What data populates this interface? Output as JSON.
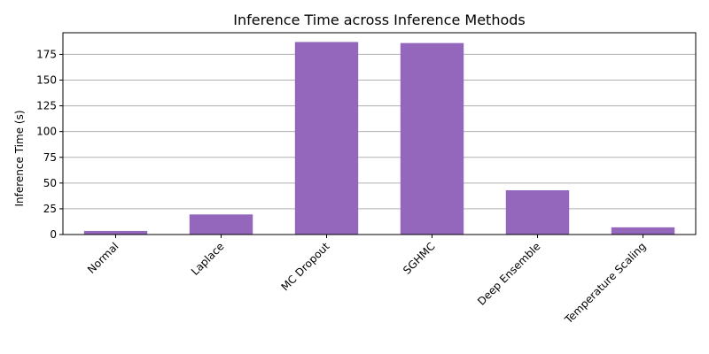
{
  "chart_data": {
    "type": "bar",
    "title": "Inference Time across Inference Methods",
    "xlabel": "",
    "ylabel": "Inference Time (s)",
    "categories": [
      "Normal",
      "Laplace",
      "MC Dropout",
      "SGHMC",
      "Deep Ensemble",
      "Temperature Scaling"
    ],
    "values": [
      3.5,
      19.5,
      187,
      186,
      43,
      7
    ],
    "ylim": [
      0,
      196
    ],
    "yticks": [
      0,
      25,
      50,
      75,
      100,
      125,
      150,
      175
    ],
    "ytick_labels": [
      "0",
      "25",
      "50",
      "75",
      "100",
      "125",
      "150",
      "175"
    ],
    "grid": "y",
    "bar_color": "#9467bd"
  }
}
